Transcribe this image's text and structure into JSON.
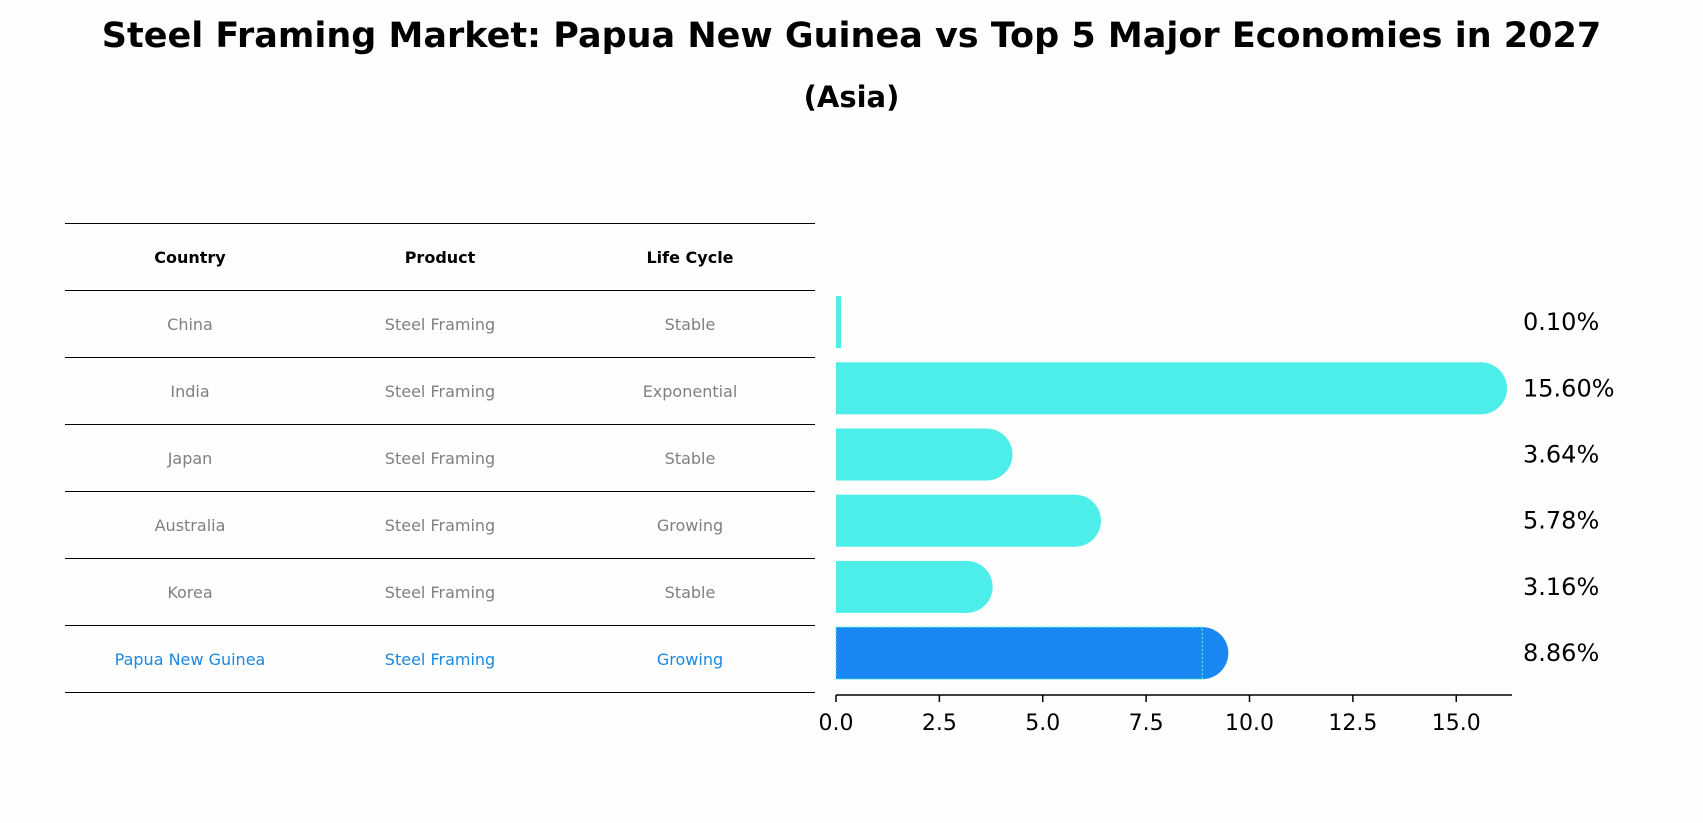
{
  "title": "Steel Framing Market: Papua New Guinea vs Top 5 Major Economies in 2027",
  "subtitle": "(Asia)",
  "table": {
    "headers": [
      "Country",
      "Product",
      "Life Cycle"
    ],
    "rows": [
      {
        "country": "China",
        "product": "Steel Framing",
        "life_cycle": "Stable"
      },
      {
        "country": "India",
        "product": "Steel Framing",
        "life_cycle": "Exponential"
      },
      {
        "country": "Japan",
        "product": "Steel Framing",
        "life_cycle": "Stable"
      },
      {
        "country": "Australia",
        "product": "Steel Framing",
        "life_cycle": "Growing"
      },
      {
        "country": "Korea",
        "product": "Steel Framing",
        "life_cycle": "Stable"
      },
      {
        "country": "Papua New Guinea",
        "product": "Steel Framing",
        "life_cycle": "Growing"
      }
    ]
  },
  "colors": {
    "bar": "#4dedea",
    "highlight_bar": "#1a88f2",
    "highlight_text": "#1a88e0",
    "muted_text": "#808080"
  },
  "chart_data": {
    "type": "bar",
    "orientation": "horizontal",
    "categories": [
      "China",
      "India",
      "Japan",
      "Australia",
      "Korea",
      "Papua New Guinea"
    ],
    "values": [
      0.1,
      15.6,
      3.64,
      5.78,
      3.16,
      8.86
    ],
    "value_labels": [
      "0.10%",
      "15.60%",
      "3.64%",
      "5.78%",
      "3.16%",
      "8.86%"
    ],
    "highlight_category": "Papua New Guinea",
    "xlim": [
      0,
      16.4
    ],
    "xticks": [
      0.0,
      2.5,
      5.0,
      7.5,
      10.0,
      12.5,
      15.0
    ],
    "xtick_labels": [
      "0.0",
      "2.5",
      "5.0",
      "7.5",
      "10.0",
      "12.5",
      "15.0"
    ],
    "grid": false
  }
}
